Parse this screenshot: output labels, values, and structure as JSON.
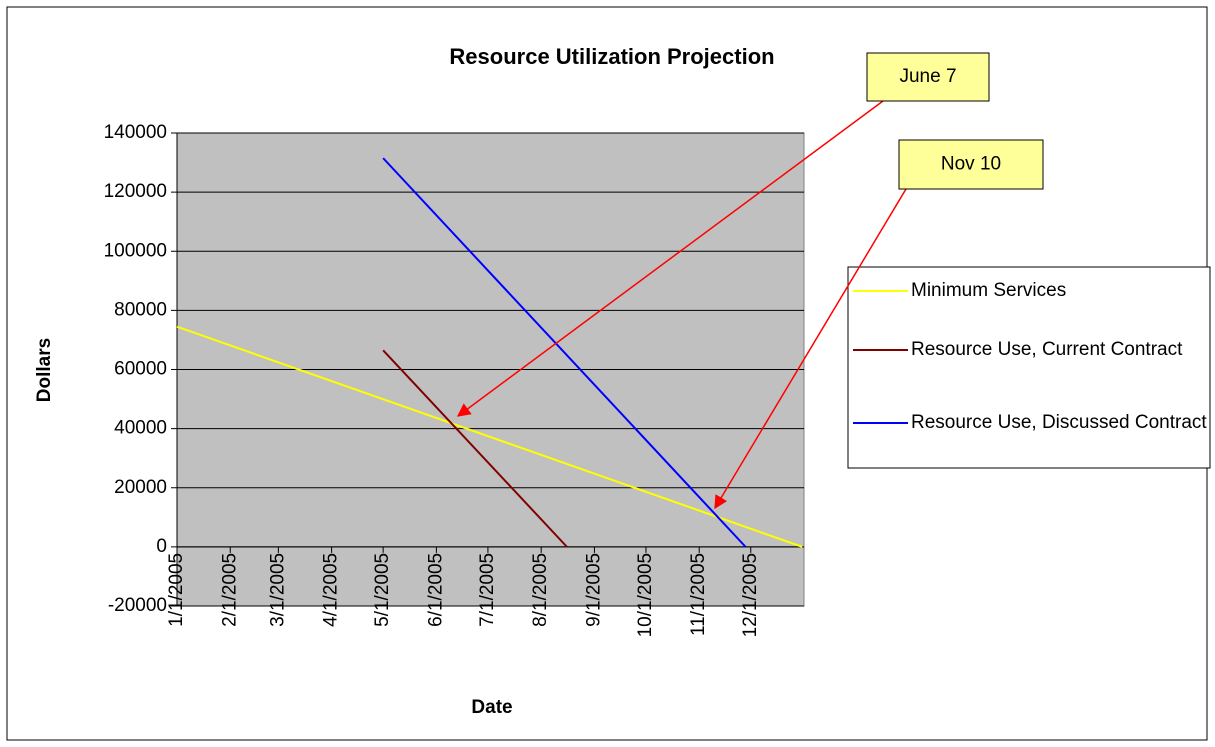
{
  "chart_data": {
    "type": "line",
    "title": "Resource Utilization Projection",
    "xlabel": "Date",
    "ylabel": "Dollars",
    "xlim": [
      "2005-01-01",
      "2006-01-01"
    ],
    "xticks": [
      {
        "value": "2005-01-01",
        "label": "1/1/2005"
      },
      {
        "value": "2005-02-01",
        "label": "2/1/2005"
      },
      {
        "value": "2005-03-01",
        "label": "3/1/2005"
      },
      {
        "value": "2005-04-01",
        "label": "4/1/2005"
      },
      {
        "value": "2005-05-01",
        "label": "5/1/2005"
      },
      {
        "value": "2005-06-01",
        "label": "6/1/2005"
      },
      {
        "value": "2005-07-01",
        "label": "7/1/2005"
      },
      {
        "value": "2005-08-01",
        "label": "8/1/2005"
      },
      {
        "value": "2005-09-01",
        "label": "9/1/2005"
      },
      {
        "value": "2005-10-01",
        "label": "10/1/2005"
      },
      {
        "value": "2005-11-01",
        "label": "11/1/2005"
      },
      {
        "value": "2005-12-01",
        "label": "12/1/2005"
      }
    ],
    "ylim": [
      -20000,
      140000
    ],
    "yticks": [
      -20000,
      0,
      20000,
      40000,
      60000,
      80000,
      100000,
      120000,
      140000
    ],
    "grid": true,
    "legend": "right",
    "series": [
      {
        "name": "Minimum Services",
        "color": "#ffff00",
        "x": [
          "2005-01-01",
          "2005-12-31"
        ],
        "values": [
          74500,
          0
        ]
      },
      {
        "name": "Resource Use, Current Contract",
        "color": "#800000",
        "x": [
          "2005-05-01",
          "2005-08-16"
        ],
        "values": [
          66500,
          0
        ]
      },
      {
        "name": "Resource Use, Discussed Contract",
        "color": "#0000ff",
        "x": [
          "2005-05-01",
          "2005-11-28"
        ],
        "values": [
          131500,
          0
        ]
      }
    ],
    "annotations": [
      "June 7",
      "Nov 10"
    ]
  }
}
